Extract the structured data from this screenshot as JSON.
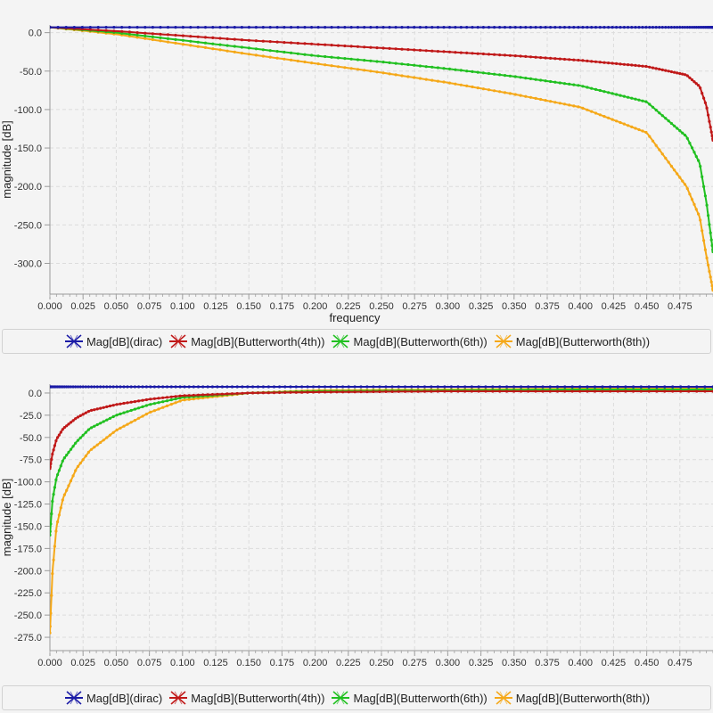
{
  "chart_data": [
    {
      "type": "line",
      "title": "",
      "xlabel": "frequency",
      "ylabel": "magnitude [dB]",
      "xlim": [
        0.0,
        0.5
      ],
      "ylim": [
        -340,
        10
      ],
      "grid": true,
      "legend_position": "bottom",
      "x_ticks": [
        "0.000",
        "0.025",
        "0.050",
        "0.075",
        "0.100",
        "0.125",
        "0.150",
        "0.175",
        "0.200",
        "0.225",
        "0.250",
        "0.275",
        "0.300",
        "0.325",
        "0.350",
        "0.375",
        "0.400",
        "0.425",
        "0.450",
        "0.475"
      ],
      "y_ticks": [
        "0.0",
        "-50.0",
        "-100.0",
        "-150.0",
        "-200.0",
        "-250.0",
        "-300.0"
      ],
      "x": [
        0.0,
        0.05,
        0.1,
        0.15,
        0.2,
        0.25,
        0.3,
        0.35,
        0.4,
        0.45,
        0.48,
        0.49,
        0.495,
        0.5
      ],
      "series": [
        {
          "name": "Mag[dB](dirac)",
          "color": "#1a1aa6",
          "values": [
            7,
            7,
            7,
            7,
            7,
            7,
            7,
            7,
            7,
            7,
            7,
            7,
            7,
            7
          ]
        },
        {
          "name": "Mag[dB](Butterworth(4th))",
          "color": "#c01818",
          "values": [
            7,
            2,
            -4,
            -10,
            -15,
            -20,
            -25,
            -30,
            -36,
            -44,
            -55,
            -70,
            -95,
            -140
          ]
        },
        {
          "name": "Mag[dB](Butterworth(6th))",
          "color": "#20c020",
          "values": [
            7,
            0,
            -10,
            -20,
            -30,
            -38,
            -47,
            -57,
            -69,
            -90,
            -135,
            -170,
            -220,
            -285
          ]
        },
        {
          "name": "Mag[dB](Butterworth(8th))",
          "color": "#f5a818",
          "values": [
            7,
            -2,
            -15,
            -28,
            -40,
            -52,
            -65,
            -80,
            -97,
            -130,
            -200,
            -240,
            -290,
            -335
          ]
        }
      ]
    },
    {
      "type": "line",
      "title": "",
      "xlabel": "",
      "ylabel": "magnitude [dB]",
      "xlim": [
        0.0,
        0.5
      ],
      "ylim": [
        -290,
        10
      ],
      "grid": true,
      "legend_position": "bottom",
      "x_ticks": [
        "0.000",
        "0.025",
        "0.050",
        "0.075",
        "0.100",
        "0.125",
        "0.150",
        "0.175",
        "0.200",
        "0.225",
        "0.250",
        "0.275",
        "0.300",
        "0.325",
        "0.350",
        "0.375",
        "0.400",
        "0.425",
        "0.450",
        "0.475"
      ],
      "y_ticks": [
        "0.0",
        "-25.0",
        "-50.0",
        "-75.0",
        "-100.0",
        "-125.0",
        "-150.0",
        "-175.0",
        "-200.0",
        "-225.0",
        "-250.0",
        "-275.0"
      ],
      "x": [
        0.0,
        0.002,
        0.005,
        0.01,
        0.02,
        0.03,
        0.05,
        0.075,
        0.1,
        0.15,
        0.2,
        0.3,
        0.4,
        0.5
      ],
      "series": [
        {
          "name": "Mag[dB](dirac)",
          "color": "#1a1aa6",
          "values": [
            7,
            7,
            7,
            7,
            7,
            7,
            7,
            7,
            7,
            7,
            7,
            7,
            7,
            7
          ]
        },
        {
          "name": "Mag[dB](Butterworth(4th))",
          "color": "#c01818",
          "values": [
            -85,
            -68,
            -52,
            -40,
            -28,
            -20,
            -13,
            -7,
            -3,
            0,
            1,
            2,
            2,
            2
          ]
        },
        {
          "name": "Mag[dB](Butterworth(6th))",
          "color": "#20c020",
          "values": [
            -160,
            -120,
            -95,
            -75,
            -55,
            -40,
            -25,
            -13,
            -5,
            0,
            2,
            3,
            4,
            4
          ]
        },
        {
          "name": "Mag[dB](Butterworth(8th))",
          "color": "#f5a818",
          "values": [
            -270,
            -200,
            -150,
            -118,
            -85,
            -65,
            -42,
            -22,
            -8,
            0,
            3,
            4,
            5,
            5
          ]
        }
      ]
    }
  ]
}
